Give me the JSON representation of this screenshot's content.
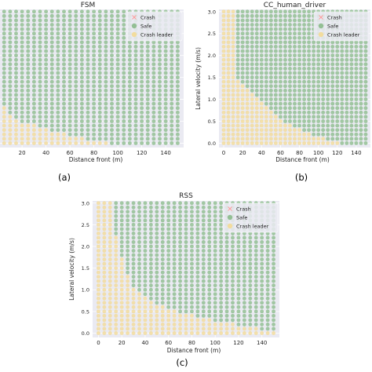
{
  "colors": {
    "plot_background": "#eaeaf2",
    "grid": "#ffffff",
    "safe": "#93bf94",
    "crash_leader": "#f2dc9e",
    "crash": "#ff9b9b",
    "text": "#222222"
  },
  "chart_data": [
    {
      "type": "scatter",
      "title": "FSM",
      "caption": "(a)",
      "xlabel": "Distance front (m)",
      "ylabel": "",
      "x_ticks": [
        20,
        40,
        60,
        80,
        100,
        120,
        140
      ],
      "y_ticks": [],
      "xlim": [
        -5,
        155
      ],
      "ylim": [
        -0.1,
        3.05
      ],
      "grid": true,
      "legend": "top-right",
      "series": [
        {
          "name": "Crash",
          "marker": "x",
          "color": "#ff9b9b",
          "points": []
        },
        {
          "name": "Safe",
          "marker": "o",
          "color": "#93bf94",
          "grid_points": true
        },
        {
          "name": "Crash leader",
          "marker": "o",
          "color": "#f2dc9e",
          "grid_points": true
        }
      ],
      "grid_points": {
        "x_start": 0,
        "x_step": 5,
        "x_count": 31,
        "y_start": 0,
        "y_step": 0.1,
        "y_count": 31,
        "crash_leader_threshold_x": [
          19,
          15,
          12,
          9,
          7,
          4,
          3,
          2,
          2,
          1,
          1,
          1,
          1,
          1,
          1,
          1,
          1,
          1,
          1,
          1,
          1,
          1,
          1,
          1,
          1,
          1,
          1,
          1,
          1,
          1,
          1
        ]
      }
    },
    {
      "type": "scatter",
      "title": "CC_human_driver",
      "caption": "(b)",
      "xlabel": "Distance front (m)",
      "ylabel": "Lateral velocity (m/s)",
      "x_ticks": [
        0,
        20,
        40,
        60,
        80,
        100,
        120,
        140
      ],
      "y_ticks": [
        "0.0",
        "0.5",
        "1.0",
        "1.5",
        "2.0",
        "2.5",
        "3.0"
      ],
      "xlim": [
        -5,
        155
      ],
      "ylim": [
        -0.1,
        3.05
      ],
      "grid": true,
      "legend": "top-right",
      "series": [
        {
          "name": "Crash",
          "marker": "x",
          "color": "#ff9b9b",
          "points": []
        },
        {
          "name": "Safe",
          "marker": "o",
          "color": "#93bf94",
          "grid_points": true
        },
        {
          "name": "Crash leader",
          "marker": "o",
          "color": "#f2dc9e",
          "grid_points": true
        }
      ],
      "grid_points": {
        "x_start": 0,
        "x_step": 5,
        "x_count": 31,
        "y_start": 0,
        "y_step": 0.1,
        "y_count": 31,
        "crash_leader_threshold_x": [
          25,
          22,
          19,
          17,
          15,
          13,
          12,
          11,
          10,
          9,
          8,
          7,
          6,
          5,
          4,
          3,
          3,
          3,
          3,
          3,
          3,
          3,
          3,
          3,
          3,
          3,
          3,
          3,
          3,
          3,
          3
        ]
      }
    },
    {
      "type": "scatter",
      "title": "RSS",
      "caption": "(c)",
      "xlabel": "Distance front (m)",
      "ylabel": "Lateral velocity (m/s)",
      "x_ticks": [
        0,
        20,
        40,
        60,
        80,
        100,
        120,
        140
      ],
      "y_ticks": [
        "0.0",
        "0.5",
        "1.0",
        "1.5",
        "2.0",
        "2.5",
        "3.0"
      ],
      "xlim": [
        -5,
        155
      ],
      "ylim": [
        -0.1,
        3.05
      ],
      "grid": true,
      "legend": "top-right",
      "series": [
        {
          "name": "Crash",
          "marker": "x",
          "color": "#ff9b9b",
          "points": []
        },
        {
          "name": "Safe",
          "marker": "o",
          "color": "#93bf94",
          "grid_points": true
        },
        {
          "name": "Crash leader",
          "marker": "o",
          "color": "#f2dc9e",
          "grid_points": true
        }
      ],
      "grid_points": {
        "x_start": 0,
        "x_step": 5,
        "x_count": 31,
        "y_start": 0,
        "y_step": 0.1,
        "y_count": 31,
        "crash_leader_threshold_x": [
          31,
          28,
          24,
          20,
          17,
          14,
          12,
          10,
          9,
          8,
          7,
          6,
          6,
          6,
          5,
          5,
          5,
          5,
          4,
          4,
          4,
          4,
          4,
          3,
          3,
          3,
          3,
          3,
          3,
          3,
          3
        ]
      }
    }
  ]
}
